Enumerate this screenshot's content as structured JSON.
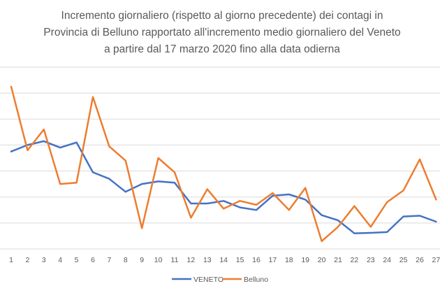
{
  "chart_data": {
    "type": "line",
    "title_lines": [
      "Incremento giornaliero  (rispetto al giorno precedente) dei contagi in",
      "Provincia di Belluno rapportato all'incremento medio giornaliero del Veneto",
      "a partire dal 17 marzo 2020 fino alla data odierna"
    ],
    "categories": [
      "1",
      "2",
      "3",
      "4",
      "5",
      "6",
      "7",
      "8",
      "9",
      "10",
      "11",
      "12",
      "13",
      "14",
      "15",
      "16",
      "17",
      "18",
      "19",
      "20",
      "21",
      "22",
      "23",
      "24",
      "25",
      "26",
      "27"
    ],
    "ylim": [
      0,
      7
    ],
    "grid": true,
    "legend_position": "bottom",
    "series": [
      {
        "name": "VENETO",
        "color": "#4472c4",
        "values": [
          3.75,
          4.0,
          4.15,
          3.9,
          4.1,
          2.95,
          2.7,
          2.2,
          2.5,
          2.6,
          2.55,
          1.75,
          1.75,
          1.85,
          1.6,
          1.5,
          2.05,
          2.1,
          1.9,
          1.3,
          1.1,
          0.6,
          0.62,
          0.65,
          1.25,
          1.28,
          1.05
        ]
      },
      {
        "name": "Belluno",
        "color": "#ed7d31",
        "values": [
          6.25,
          3.8,
          4.6,
          2.5,
          2.55,
          5.85,
          3.95,
          3.4,
          0.8,
          3.5,
          2.95,
          1.2,
          2.3,
          1.55,
          1.85,
          1.7,
          2.15,
          1.5,
          2.35,
          0.3,
          0.85,
          1.65,
          0.85,
          1.8,
          2.25,
          3.45,
          1.9
        ]
      }
    ]
  }
}
